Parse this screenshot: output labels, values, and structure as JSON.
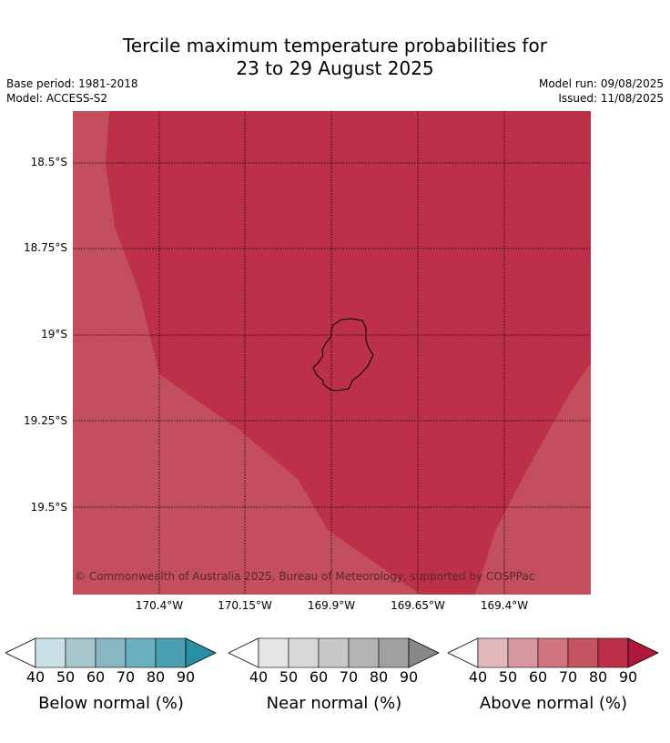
{
  "header": {
    "title_line1": "Tercile maximum temperature probabilities for",
    "title_line2": "23 to 29 August 2025",
    "base_period": "Base period: 1981-2018",
    "model": "Model: ACCESS-S2",
    "model_run": "Model run: 09/08/2025",
    "issued": "Issued: 11/08/2025"
  },
  "map": {
    "copyright": "© Commonwealth of Australia 2025, Bureau of Meteorology, supported by COSPPac",
    "lat_labels": [
      "18.5°S",
      "18.75°S",
      "19°S",
      "19.25°S",
      "19.5°S"
    ],
    "lon_labels": [
      "170.4°W",
      "170.15°W",
      "169.9°W",
      "169.65°W",
      "169.4°W"
    ],
    "colors": {
      "above_70_80": "#c34e5c",
      "above_80_90": "#bc3049",
      "coastline": "#000000",
      "gridline": "#000000"
    }
  },
  "legends": [
    {
      "title": "Below normal (%)",
      "ticks": [
        "40",
        "50",
        "60",
        "70",
        "80",
        "90"
      ],
      "colors": [
        "#c9e1e7",
        "#a7c6cc",
        "#88b6c3",
        "#6bb0bf",
        "#4aa0b2",
        "#2a8fa5"
      ]
    },
    {
      "title": "Near normal (%)",
      "ticks": [
        "40",
        "50",
        "60",
        "70",
        "80",
        "90"
      ],
      "colors": [
        "#e5e5e5",
        "#d8d8d8",
        "#c8c8c8",
        "#b4b4b4",
        "#a0a0a0",
        "#888888"
      ]
    },
    {
      "title": "Above normal (%)",
      "ticks": [
        "40",
        "50",
        "60",
        "70",
        "80",
        "90"
      ],
      "colors": [
        "#e2b8bd",
        "#d6979f",
        "#cf7480",
        "#c4545f",
        "#bc3049",
        "#b0183a"
      ]
    }
  ]
}
